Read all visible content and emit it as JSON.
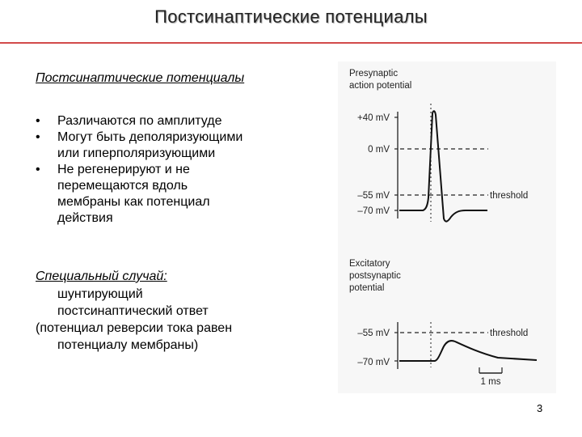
{
  "slide": {
    "title": "Постсинаптические потенциалы",
    "subtitle": "Постсинаптические потенциалы",
    "bullets": [
      {
        "bullet": "•",
        "lines": [
          "Различаются по амплитуде"
        ]
      },
      {
        "bullet": "•",
        "lines": [
          "Могут быть деполяризующими",
          "или гиперполяризующими"
        ]
      },
      {
        "bullet": "•",
        "lines": [
          "Не регенерируют и не",
          "перемещаются вдоль",
          "мембраны как потенциал",
          "действия"
        ]
      }
    ],
    "special_case": {
      "heading": "Специальный случай:",
      "line1": "шунтирующий",
      "line2": "постсинаптический ответ",
      "line3": "(потенциал реверсии тока равен",
      "line4": "потенциалу мембраны)"
    },
    "page_number": "3",
    "accent_color": "#d24a4a"
  },
  "figure": {
    "top_panel": {
      "title_line1": "Presynaptic",
      "title_line2": "action potential",
      "labels": [
        "+40 mV",
        "0 mV",
        "–55 mV",
        "–70 mV"
      ],
      "threshold_label": "threshold"
    },
    "bottom_panel": {
      "title_line1": "Excitatory",
      "title_line2": "postsynaptic",
      "title_line3": "potential",
      "labels": [
        "–55 mV",
        "–70 mV"
      ],
      "threshold_label": "threshold",
      "scale_label": "1 ms"
    }
  }
}
